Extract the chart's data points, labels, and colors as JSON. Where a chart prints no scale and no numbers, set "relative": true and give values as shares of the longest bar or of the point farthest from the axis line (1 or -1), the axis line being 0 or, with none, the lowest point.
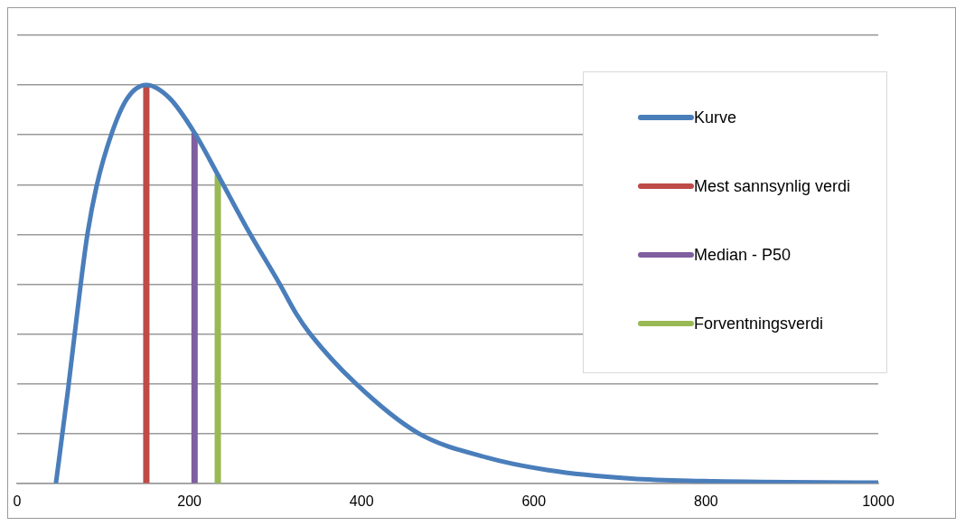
{
  "chart_data": {
    "type": "line",
    "relative": true,
    "xlim": [
      0,
      1000
    ],
    "xticks": [
      0,
      200,
      400,
      600,
      800,
      1000
    ],
    "grid": "y",
    "legend": "top right",
    "marker": "none",
    "line_style": "solid",
    "series": [
      {
        "name": "Kurve",
        "color": "#4a7ebb",
        "x": [
          45,
          59,
          70,
          81,
          92,
          110,
          128,
          150,
          177,
          206,
          233,
          269,
          305,
          324,
          340,
          393,
          465,
          545,
          617,
          713,
          810,
          1000
        ],
        "values": [
          0,
          0.234,
          0.433,
          0.617,
          0.744,
          0.88,
          0.967,
          1,
          0.967,
          0.88,
          0.775,
          0.632,
          0.5,
          0.426,
          0.376,
          0.251,
          0.127,
          0.065,
          0.033,
          0.012,
          0.005,
          0.002
        ]
      },
      {
        "name": "Mest sannsynlig verdi",
        "color": "#be4b48",
        "x": [
          150,
          150
        ],
        "values": [
          0,
          1
        ]
      },
      {
        "name": "Median - P50",
        "color": "#7e5f9f",
        "x": [
          206,
          206
        ],
        "values": [
          0,
          0.88
        ]
      },
      {
        "name": "Forventningsverdi",
        "color": "#98b954",
        "x": [
          233,
          233
        ],
        "values": [
          0,
          0.775
        ]
      }
    ]
  }
}
